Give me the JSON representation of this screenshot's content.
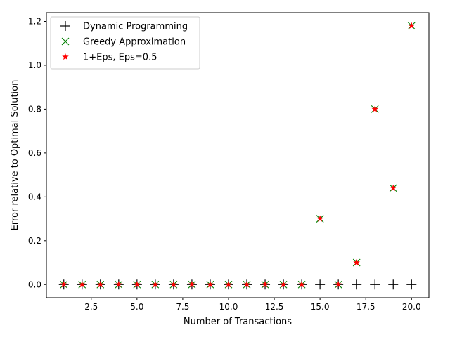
{
  "chart_data": {
    "type": "scatter",
    "title": "",
    "xlabel": "Number of Transactions",
    "ylabel": "Error relative to Optimal Solution",
    "xlim": [
      0.05,
      20.95
    ],
    "ylim": [
      -0.06,
      1.24
    ],
    "xticks": [
      2.5,
      5.0,
      7.5,
      10.0,
      12.5,
      15.0,
      17.5,
      20.0
    ],
    "xtick_labels": [
      "2.5",
      "5.0",
      "7.5",
      "10.0",
      "12.5",
      "15.0",
      "17.5",
      "20.0"
    ],
    "yticks": [
      0.0,
      0.2,
      0.4,
      0.6,
      0.8,
      1.0,
      1.2
    ],
    "ytick_labels": [
      "0.0",
      "0.2",
      "0.4",
      "0.6",
      "0.8",
      "1.0",
      "1.2"
    ],
    "grid": false,
    "legend_position": "top-left",
    "x": [
      1,
      2,
      3,
      4,
      5,
      6,
      7,
      8,
      9,
      10,
      11,
      12,
      13,
      14,
      15,
      16,
      17,
      18,
      19,
      20
    ],
    "series": [
      {
        "name": "Dynamic Programming",
        "marker": "plus",
        "color": "#000000",
        "values": [
          0,
          0,
          0,
          0,
          0,
          0,
          0,
          0,
          0,
          0,
          0,
          0,
          0,
          0,
          0,
          0,
          0,
          0,
          0,
          0
        ]
      },
      {
        "name": "Greedy Approximation",
        "marker": "x",
        "color": "#008000",
        "values": [
          0,
          0,
          0,
          0,
          0,
          0,
          0,
          0,
          0,
          0,
          0,
          0,
          0,
          0,
          0.3,
          0,
          0.1,
          0.8,
          0.44,
          1.18
        ]
      },
      {
        "name": "1+Eps, Eps=0.5",
        "marker": "star",
        "color": "#ff0000",
        "values": [
          0,
          0,
          0,
          0,
          0,
          0,
          0,
          0,
          0,
          0,
          0,
          0,
          0,
          0,
          0.3,
          0,
          0.1,
          0.8,
          0.44,
          1.18
        ]
      }
    ]
  }
}
